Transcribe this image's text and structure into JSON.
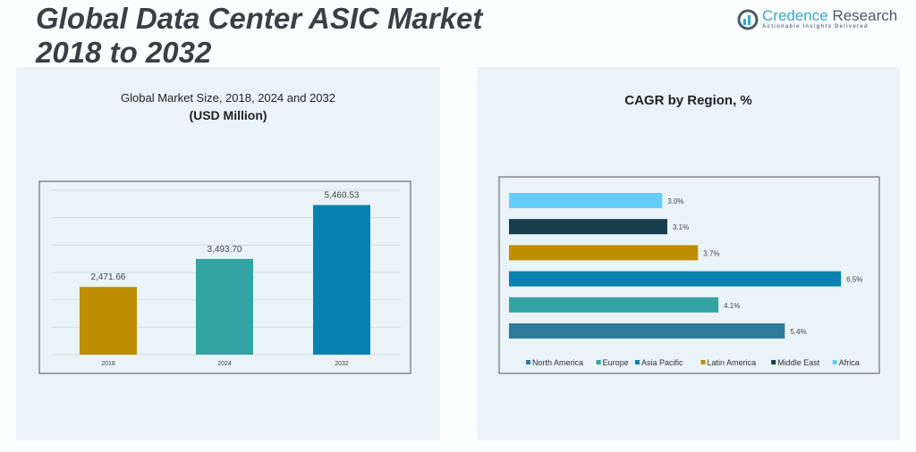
{
  "header": {
    "title_line1": "Global Data Center ASIC Market",
    "title_line2": "2018 to 2032"
  },
  "logo": {
    "name_part1": "Credence",
    "name_part2": " Research",
    "tagline": "Actionable Insights Delivered"
  },
  "chart_data": [
    {
      "type": "bar",
      "title": "Global Market Size, 2018, 2024 and 2032",
      "subtitle": "(USD Million)",
      "categories": [
        "2018",
        "2024",
        "2032"
      ],
      "values": [
        2471.66,
        3493.7,
        5460.53
      ],
      "data_labels": [
        "2,471.66",
        "3,493.70",
        "5,460.53"
      ],
      "colors": [
        "#bf8e00",
        "#33a3a3",
        "#0681b0"
      ],
      "ylim": [
        0,
        6000
      ],
      "grid": true
    },
    {
      "type": "bar",
      "orientation": "horizontal",
      "title": "CAGR by Region, %",
      "categories": [
        "North America",
        "Europe",
        "Asia Pacific",
        "Latin America",
        "Middle East",
        "Africa"
      ],
      "values": [
        5.4,
        4.1,
        6.5,
        3.7,
        3.1,
        3.0
      ],
      "data_labels": [
        "5.4%",
        "4.1%",
        "6.5%",
        "3.7%",
        "3.1%",
        "3.0%"
      ],
      "colors": [
        "#2f7a9b",
        "#33a3a3",
        "#0681b0",
        "#bf8e00",
        "#173e4d",
        "#66cdf7"
      ],
      "legend": "bottom",
      "grid": false
    }
  ]
}
